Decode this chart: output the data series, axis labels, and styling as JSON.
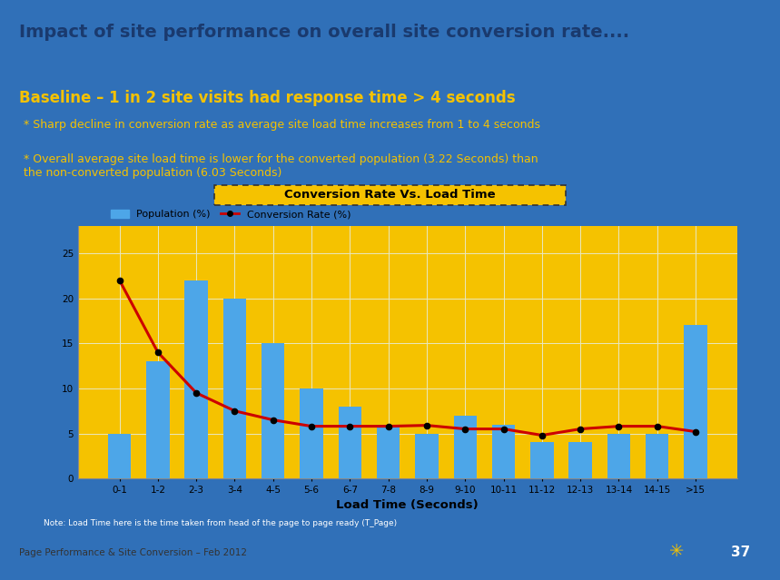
{
  "title": "Impact of site performance on overall site conversion rate....",
  "subtitle": "Baseline – 1 in 2 site visits had response time > 4 seconds",
  "bullet1": "* Sharp decline in conversion rate as average site load time increases from 1 to 4 seconds",
  "bullet2": "* Overall average site load time is lower for the converted population (3.22 Seconds) than\nthe non-converted population (6.03 Seconds)",
  "chart_title": "Conversion Rate Vs. Load Time",
  "xlabel": "Load Time (Seconds)",
  "note": "Note: Load Time here is the time taken from head of the page to page ready (T_Page)",
  "footer_left": "Page Performance & Site Conversion – Feb 2012",
  "page_num": "37",
  "categories": [
    "0-1",
    "1-2",
    "2-3",
    "3-4",
    "4-5",
    "5-6",
    "6-7",
    "7-8",
    "8-9",
    "9-10",
    "10-11",
    "11-12",
    "12-13",
    "13-14",
    "14-15",
    ">15"
  ],
  "population": [
    5,
    13,
    22,
    20,
    15,
    10,
    8,
    6,
    5,
    7,
    6,
    4,
    4,
    5,
    5,
    17
  ],
  "conversion_rate": [
    22,
    14,
    9.5,
    7.5,
    6.5,
    5.8,
    5.8,
    5.8,
    5.9,
    5.5,
    5.5,
    4.8,
    5.5,
    5.8,
    5.8,
    5.2
  ],
  "bar_color": "#4da6e8",
  "line_color": "#cc0000",
  "bg_blue": "#3070b8",
  "bg_chart": "#f5c200",
  "bg_white": "#ffffff",
  "subtitle_color": "#f5c200",
  "bullet_color": "#f5c200",
  "title_color": "#1a3a6e",
  "grid_color": "#e8e8c0",
  "ylim": [
    0,
    28
  ]
}
